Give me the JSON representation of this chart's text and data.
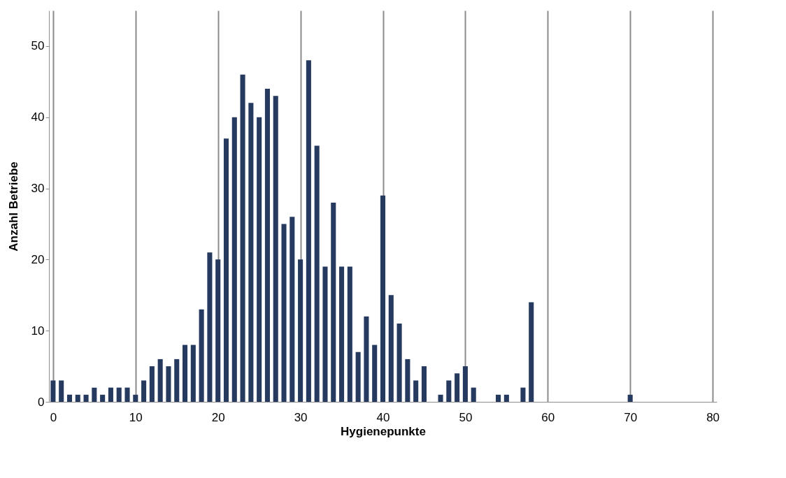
{
  "chart_data": {
    "type": "bar",
    "xlabel": "Hygienepunkte",
    "ylabel": "Anzahl Betriebe",
    "x": [
      0,
      1,
      2,
      3,
      4,
      5,
      6,
      7,
      8,
      9,
      10,
      11,
      12,
      13,
      14,
      15,
      16,
      17,
      18,
      19,
      20,
      21,
      22,
      23,
      24,
      25,
      26,
      27,
      28,
      29,
      30,
      31,
      32,
      33,
      34,
      35,
      36,
      37,
      38,
      39,
      40,
      41,
      42,
      43,
      44,
      45,
      46,
      47,
      48,
      49,
      50,
      51,
      52,
      53,
      54,
      55,
      56,
      57,
      58,
      59,
      60,
      61,
      62,
      63,
      64,
      65,
      66,
      67,
      68,
      69,
      70,
      71,
      72,
      73,
      74,
      75,
      76,
      77,
      78,
      79,
      80
    ],
    "values": [
      3,
      3,
      1,
      1,
      1,
      2,
      1,
      2,
      2,
      2,
      1,
      3,
      5,
      6,
      5,
      6,
      8,
      8,
      13,
      21,
      20,
      37,
      40,
      46,
      42,
      40,
      44,
      43,
      25,
      26,
      20,
      48,
      36,
      19,
      28,
      19,
      19,
      7,
      12,
      8,
      29,
      15,
      11,
      6,
      3,
      5,
      0,
      1,
      3,
      4,
      5,
      2,
      0,
      0,
      1,
      1,
      0,
      2,
      14,
      0,
      0,
      0,
      0,
      0,
      0,
      0,
      0,
      0,
      0,
      0,
      1,
      0,
      0,
      0,
      0,
      0,
      0,
      0,
      0,
      0,
      0
    ],
    "color": "#253a5e",
    "xlim": [
      -0.5,
      80.5
    ],
    "xticks": [
      0,
      10,
      20,
      30,
      40,
      50,
      60,
      70,
      80
    ],
    "ylim": [
      0,
      55
    ],
    "yticks": [
      0,
      10,
      20,
      30,
      40,
      50
    ],
    "grid": "x"
  }
}
